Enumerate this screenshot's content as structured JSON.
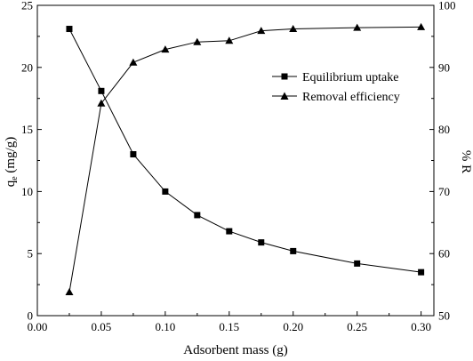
{
  "chart_data": {
    "type": "line",
    "x": [
      0.025,
      0.05,
      0.075,
      0.1,
      0.125,
      0.15,
      0.175,
      0.2,
      0.25,
      0.3
    ],
    "x_ticks": [
      "0.00",
      "0.05",
      "0.10",
      "0.15",
      "0.20",
      "0.25",
      "0.30"
    ],
    "xlabel": "Adsorbent mass (g)",
    "xlim": [
      0.0,
      0.31
    ],
    "ylabel_left_main": "q",
    "ylabel_left_sub": "e",
    "ylabel_left_unit": " (mg/g)",
    "ylim_left": [
      0,
      25
    ],
    "y_ticks_left": [
      "0",
      "5",
      "10",
      "15",
      "20",
      "25"
    ],
    "ylabel_right": "% R",
    "ylim_right": [
      50,
      100
    ],
    "y_ticks_right": [
      "50",
      "60",
      "70",
      "80",
      "90",
      "100"
    ],
    "legend_position": "upper-right",
    "grid": false,
    "series": [
      {
        "name": "Equilibrium uptake",
        "axis": "left",
        "marker": "square",
        "values": [
          23.1,
          18.1,
          13.0,
          10.0,
          8.1,
          6.8,
          5.9,
          5.2,
          4.2,
          3.5
        ]
      },
      {
        "name": "Removal efficiency",
        "axis": "right",
        "marker": "triangle",
        "values": [
          53.8,
          84.2,
          90.8,
          92.9,
          94.1,
          94.3,
          95.9,
          96.2,
          96.4,
          96.5
        ]
      }
    ]
  }
}
